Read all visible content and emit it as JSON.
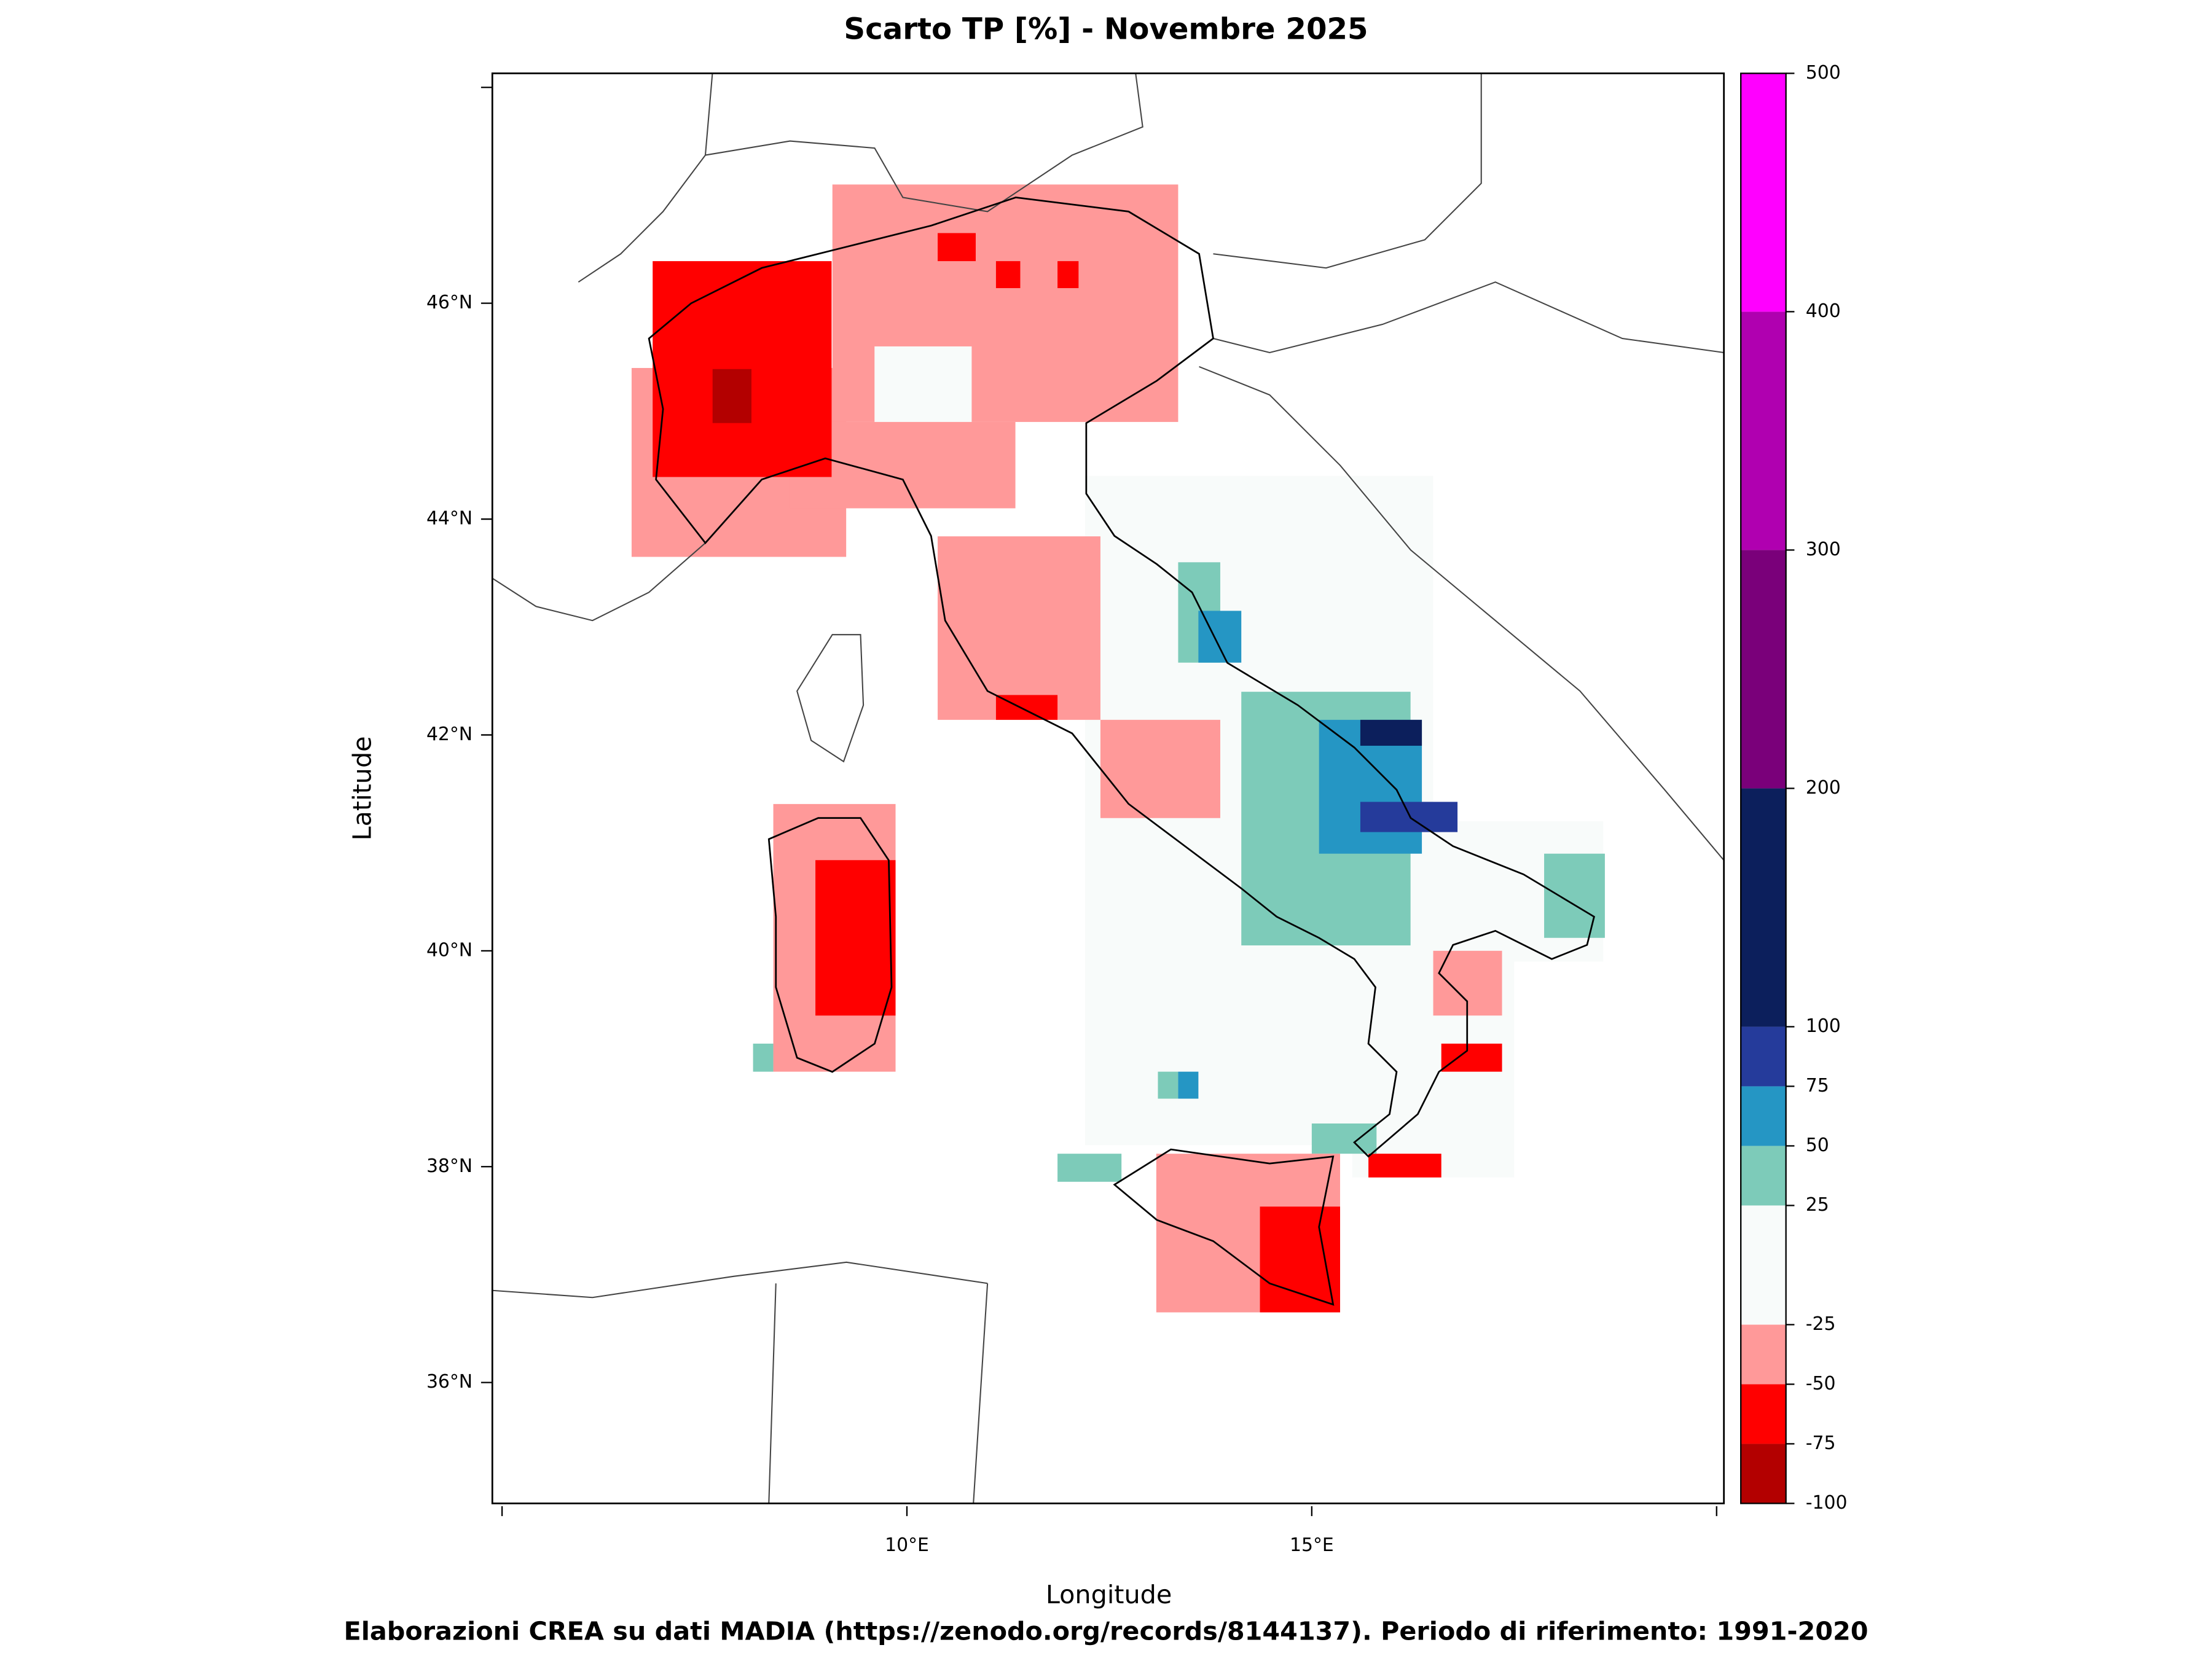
{
  "chart_data": {
    "type": "map",
    "title": "Scarto TP [%] - Novembre 2025",
    "x_label": "Longitude",
    "y_label": "Latitude",
    "footer": "Elaborazioni CREA su dati MADIA (https://zenodo.org/records/8144137). Periodo di riferimento: 1991-2020",
    "xlim": [
      4.88,
      20.09
    ],
    "ylim": [
      34.88,
      48.13
    ],
    "xticks": [
      {
        "value": 10,
        "label": "10°E"
      },
      {
        "value": 15,
        "label": "15°E"
      }
    ],
    "xminor_ticks": [
      5,
      20
    ],
    "yticks": [
      {
        "value": 36,
        "label": "36°N"
      },
      {
        "value": 38,
        "label": "38°N"
      },
      {
        "value": 40,
        "label": "40°N"
      },
      {
        "value": 42,
        "label": "42°N"
      },
      {
        "value": 44,
        "label": "44°N"
      },
      {
        "value": 46,
        "label": "46°N"
      }
    ],
    "yminor_ticks": [
      48
    ],
    "colorbar": {
      "levels": [
        -100,
        -75,
        -50,
        -25,
        25,
        50,
        75,
        100,
        200,
        300,
        400,
        500
      ],
      "colors": [
        "#b30000",
        "#ff0000",
        "#ff9999",
        "#f8fbfa",
        "#7dcbb9",
        "#2596c4",
        "#253b9b",
        "#0c1f5c",
        "#7a007a",
        "#b000b0",
        "#ff00ff"
      ]
    },
    "cells": [
      {
        "lon": [
          12.2,
          16.5
        ],
        "lat": [
          38.2,
          44.4
        ],
        "value": 0
      },
      {
        "lon": [
          15.5,
          17.5
        ],
        "lat": [
          37.9,
          41.0
        ],
        "value": 0
      },
      {
        "lon": [
          16.3,
          18.6
        ],
        "lat": [
          39.9,
          41.2
        ],
        "value": 0
      },
      {
        "lon": [
          6.6,
          9.25
        ],
        "lat": [
          43.65,
          45.4
        ],
        "value": -35
      },
      {
        "lon": [
          9.08,
          13.35
        ],
        "lat": [
          44.9,
          47.1
        ],
        "value": -35
      },
      {
        "lon": [
          8.55,
          11.34
        ],
        "lat": [
          44.1,
          44.9
        ],
        "value": -35
      },
      {
        "lon": [
          9.6,
          10.8
        ],
        "lat": [
          44.9,
          45.6
        ],
        "value": 0
      },
      {
        "lon": [
          6.86,
          9.07
        ],
        "lat": [
          44.39,
          46.39
        ],
        "value": -60
      },
      {
        "lon": [
          7.6,
          8.08
        ],
        "lat": [
          44.89,
          45.39
        ],
        "value": -80
      },
      {
        "lon": [
          10.38,
          10.85
        ],
        "lat": [
          46.39,
          46.65
        ],
        "value": -60
      },
      {
        "lon": [
          11.1,
          11.4
        ],
        "lat": [
          46.14,
          46.39
        ],
        "value": -60
      },
      {
        "lon": [
          11.86,
          12.12
        ],
        "lat": [
          46.14,
          46.39
        ],
        "value": -60
      },
      {
        "lon": [
          10.38,
          12.39
        ],
        "lat": [
          42.14,
          43.84
        ],
        "value": -35
      },
      {
        "lon": [
          11.1,
          11.86
        ],
        "lat": [
          42.14,
          42.37
        ],
        "value": -60
      },
      {
        "lon": [
          12.39,
          13.87
        ],
        "lat": [
          41.23,
          42.14
        ],
        "value": -35
      },
      {
        "lon": [
          13.35,
          13.87
        ],
        "lat": [
          42.67,
          43.6
        ],
        "value": 35
      },
      {
        "lon": [
          13.6,
          14.13
        ],
        "lat": [
          42.67,
          43.15
        ],
        "value": 60
      },
      {
        "lon": [
          14.13,
          16.22
        ],
        "lat": [
          40.05,
          42.4
        ],
        "value": 35
      },
      {
        "lon": [
          15.09,
          16.36
        ],
        "lat": [
          40.9,
          42.14
        ],
        "value": 60
      },
      {
        "lon": [
          15.6,
          16.36
        ],
        "lat": [
          41.9,
          42.14
        ],
        "value": 150
      },
      {
        "lon": [
          15.6,
          16.8
        ],
        "lat": [
          41.1,
          41.38
        ],
        "value": 85
      },
      {
        "lon": [
          17.87,
          18.62
        ],
        "lat": [
          40.12,
          40.9
        ],
        "value": 35
      },
      {
        "lon": [
          16.5,
          17.35
        ],
        "lat": [
          39.4,
          40.0
        ],
        "value": -35
      },
      {
        "lon": [
          16.6,
          17.35
        ],
        "lat": [
          38.88,
          39.14
        ],
        "value": -60
      },
      {
        "lon": [
          15.7,
          16.6
        ],
        "lat": [
          37.9,
          38.12
        ],
        "value": -60
      },
      {
        "lon": [
          15.0,
          15.8
        ],
        "lat": [
          38.12,
          38.4
        ],
        "value": 35
      },
      {
        "lon": [
          8.35,
          9.86
        ],
        "lat": [
          38.88,
          41.36
        ],
        "value": -35
      },
      {
        "lon": [
          8.87,
          9.86
        ],
        "lat": [
          39.4,
          40.84
        ],
        "value": -60
      },
      {
        "lon": [
          8.1,
          8.35
        ],
        "lat": [
          38.88,
          39.14
        ],
        "value": 30
      },
      {
        "lon": [
          13.08,
          15.35
        ],
        "lat": [
          36.65,
          38.12
        ],
        "value": -35
      },
      {
        "lon": [
          14.36,
          15.35
        ],
        "lat": [
          36.65,
          37.63
        ],
        "value": -60
      },
      {
        "lon": [
          11.86,
          12.65
        ],
        "lat": [
          37.86,
          38.12
        ],
        "value": 35
      },
      {
        "lon": [
          13.1,
          13.35
        ],
        "lat": [
          38.63,
          38.88
        ],
        "value": 35
      },
      {
        "lon": [
          13.35,
          13.6
        ],
        "lat": [
          38.63,
          38.88
        ],
        "value": 60
      }
    ]
  }
}
